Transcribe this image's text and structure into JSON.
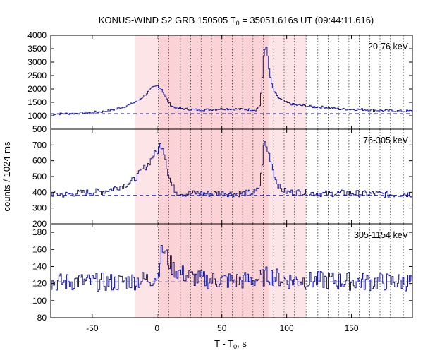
{
  "chart_data": {
    "type": "line",
    "title": {
      "main": "KONUS-WIND S2 GRB 150505 T",
      "sub": "0",
      "rest": " = 35051.616s UT (09:44:11.616)"
    },
    "xlabel": {
      "main": "T - T",
      "sub": "0",
      "rest": ", s"
    },
    "ylabel": "counts / 1024 ms",
    "x_range": [
      -82,
      197
    ],
    "x_ticks": [
      -50,
      0,
      50,
      100,
      150
    ],
    "colors": {
      "line": "#1a1a8c",
      "shade_light": "#fde4e6",
      "shade_dark": "#fbd3d7",
      "grid": "#333333"
    },
    "shaded_regions": [
      {
        "from": -17,
        "to": 115,
        "tone": "light"
      },
      {
        "from": 1,
        "to": 86,
        "tone": "dark"
      }
    ],
    "interval_boundaries": [
      1,
      9,
      18,
      26,
      34,
      42,
      50,
      58,
      66,
      74,
      82,
      90,
      98,
      106,
      115,
      124,
      132,
      140,
      148,
      156,
      164,
      172,
      180,
      190
    ],
    "panels": [
      {
        "label": "20-76 keV",
        "ylim": [
          500,
          4000
        ],
        "y_ticks": [
          500,
          1000,
          1500,
          2000,
          2500,
          3000,
          3500,
          4000
        ],
        "background": 1080,
        "series": [
          [
            -82,
            1060
          ],
          [
            -72,
            1080
          ],
          [
            -62,
            1090
          ],
          [
            -52,
            1120
          ],
          [
            -42,
            1160
          ],
          [
            -32,
            1250
          ],
          [
            -22,
            1400
          ],
          [
            -14,
            1600
          ],
          [
            -8,
            1850
          ],
          [
            -4,
            2050
          ],
          [
            0,
            2120
          ],
          [
            3,
            2000
          ],
          [
            6,
            1700
          ],
          [
            9,
            1450
          ],
          [
            13,
            1300
          ],
          [
            18,
            1270
          ],
          [
            25,
            1240
          ],
          [
            32,
            1220
          ],
          [
            40,
            1230
          ],
          [
            50,
            1260
          ],
          [
            60,
            1250
          ],
          [
            70,
            1230
          ],
          [
            76,
            1220
          ],
          [
            79,
            1400
          ],
          [
            81,
            2500
          ],
          [
            82,
            3350
          ],
          [
            83,
            3500
          ],
          [
            84,
            3600
          ],
          [
            85,
            3150
          ],
          [
            86,
            2700
          ],
          [
            88,
            2150
          ],
          [
            90,
            1900
          ],
          [
            92,
            1720
          ],
          [
            96,
            1580
          ],
          [
            100,
            1480
          ],
          [
            106,
            1400
          ],
          [
            112,
            1380
          ],
          [
            120,
            1330
          ],
          [
            130,
            1320
          ],
          [
            140,
            1250
          ],
          [
            150,
            1240
          ],
          [
            160,
            1230
          ],
          [
            170,
            1200
          ],
          [
            180,
            1190
          ],
          [
            190,
            1170
          ],
          [
            196,
            1180
          ]
        ]
      },
      {
        "label": "76-305 keV",
        "ylim": [
          200,
          800
        ],
        "y_ticks": [
          200,
          300,
          400,
          500,
          600,
          700
        ],
        "background": 380,
        "series": [
          [
            -82,
            390
          ],
          [
            -72,
            385
          ],
          [
            -62,
            395
          ],
          [
            -52,
            400
          ],
          [
            -42,
            405
          ],
          [
            -32,
            430
          ],
          [
            -24,
            450
          ],
          [
            -18,
            480
          ],
          [
            -12,
            540
          ],
          [
            -7,
            580
          ],
          [
            -3,
            640
          ],
          [
            0,
            660
          ],
          [
            2,
            700
          ],
          [
            4,
            690
          ],
          [
            6,
            620
          ],
          [
            8,
            520
          ],
          [
            11,
            440
          ],
          [
            15,
            400
          ],
          [
            20,
            390
          ],
          [
            30,
            395
          ],
          [
            40,
            390
          ],
          [
            50,
            395
          ],
          [
            60,
            390
          ],
          [
            70,
            395
          ],
          [
            76,
            400
          ],
          [
            79,
            450
          ],
          [
            81,
            600
          ],
          [
            82,
            700
          ],
          [
            83,
            720
          ],
          [
            84,
            680
          ],
          [
            86,
            640
          ],
          [
            88,
            580
          ],
          [
            91,
            480
          ],
          [
            95,
            420
          ],
          [
            100,
            400
          ],
          [
            110,
            400
          ],
          [
            120,
            395
          ],
          [
            130,
            390
          ],
          [
            140,
            395
          ],
          [
            150,
            395
          ],
          [
            160,
            390
          ],
          [
            170,
            390
          ],
          [
            180,
            385
          ],
          [
            190,
            390
          ],
          [
            196,
            388
          ]
        ]
      },
      {
        "label": "305-1154 keV",
        "ylim": [
          80,
          190
        ],
        "y_ticks": [
          80,
          100,
          120,
          140,
          160,
          180
        ],
        "background": 122,
        "series": [
          [
            -82,
            122
          ],
          [
            -72,
            121
          ],
          [
            -62,
            123
          ],
          [
            -52,
            121
          ],
          [
            -42,
            122
          ],
          [
            -32,
            121
          ],
          [
            -22,
            123
          ],
          [
            -12,
            124
          ],
          [
            -4,
            126
          ],
          [
            0,
            130
          ],
          [
            2,
            150
          ],
          [
            4,
            160
          ],
          [
            6,
            155
          ],
          [
            8,
            148
          ],
          [
            12,
            138
          ],
          [
            18,
            132
          ],
          [
            25,
            128
          ],
          [
            32,
            125
          ],
          [
            40,
            124
          ],
          [
            50,
            124
          ],
          [
            60,
            123
          ],
          [
            70,
            124
          ],
          [
            80,
            126
          ],
          [
            85,
            130
          ],
          [
            90,
            128
          ],
          [
            100,
            124
          ],
          [
            110,
            124
          ],
          [
            120,
            123
          ],
          [
            130,
            124
          ],
          [
            140,
            123
          ],
          [
            150,
            123
          ],
          [
            160,
            122
          ],
          [
            170,
            122
          ],
          [
            180,
            122
          ],
          [
            190,
            122
          ],
          [
            196,
            122
          ]
        ]
      }
    ]
  }
}
